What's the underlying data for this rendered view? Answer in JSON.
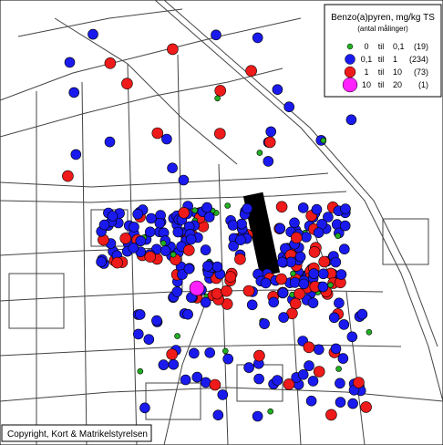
{
  "legend": {
    "title": "Benzo(a)pyren, mg/kg TS",
    "subtitle": "(antal målinger)",
    "rows": [
      {
        "from": "0",
        "word": "til",
        "to": "0,1",
        "count": "(19)"
      },
      {
        "from": "0,1",
        "word": "til",
        "to": "1",
        "count": "(234)"
      },
      {
        "from": "1",
        "word": "til",
        "to": "10",
        "count": "(73)"
      },
      {
        "from": "10",
        "word": "til",
        "to": "20",
        "count": "(1)"
      }
    ]
  },
  "copyright": "Copyright, Kort & Matrikelstyrelsen"
}
